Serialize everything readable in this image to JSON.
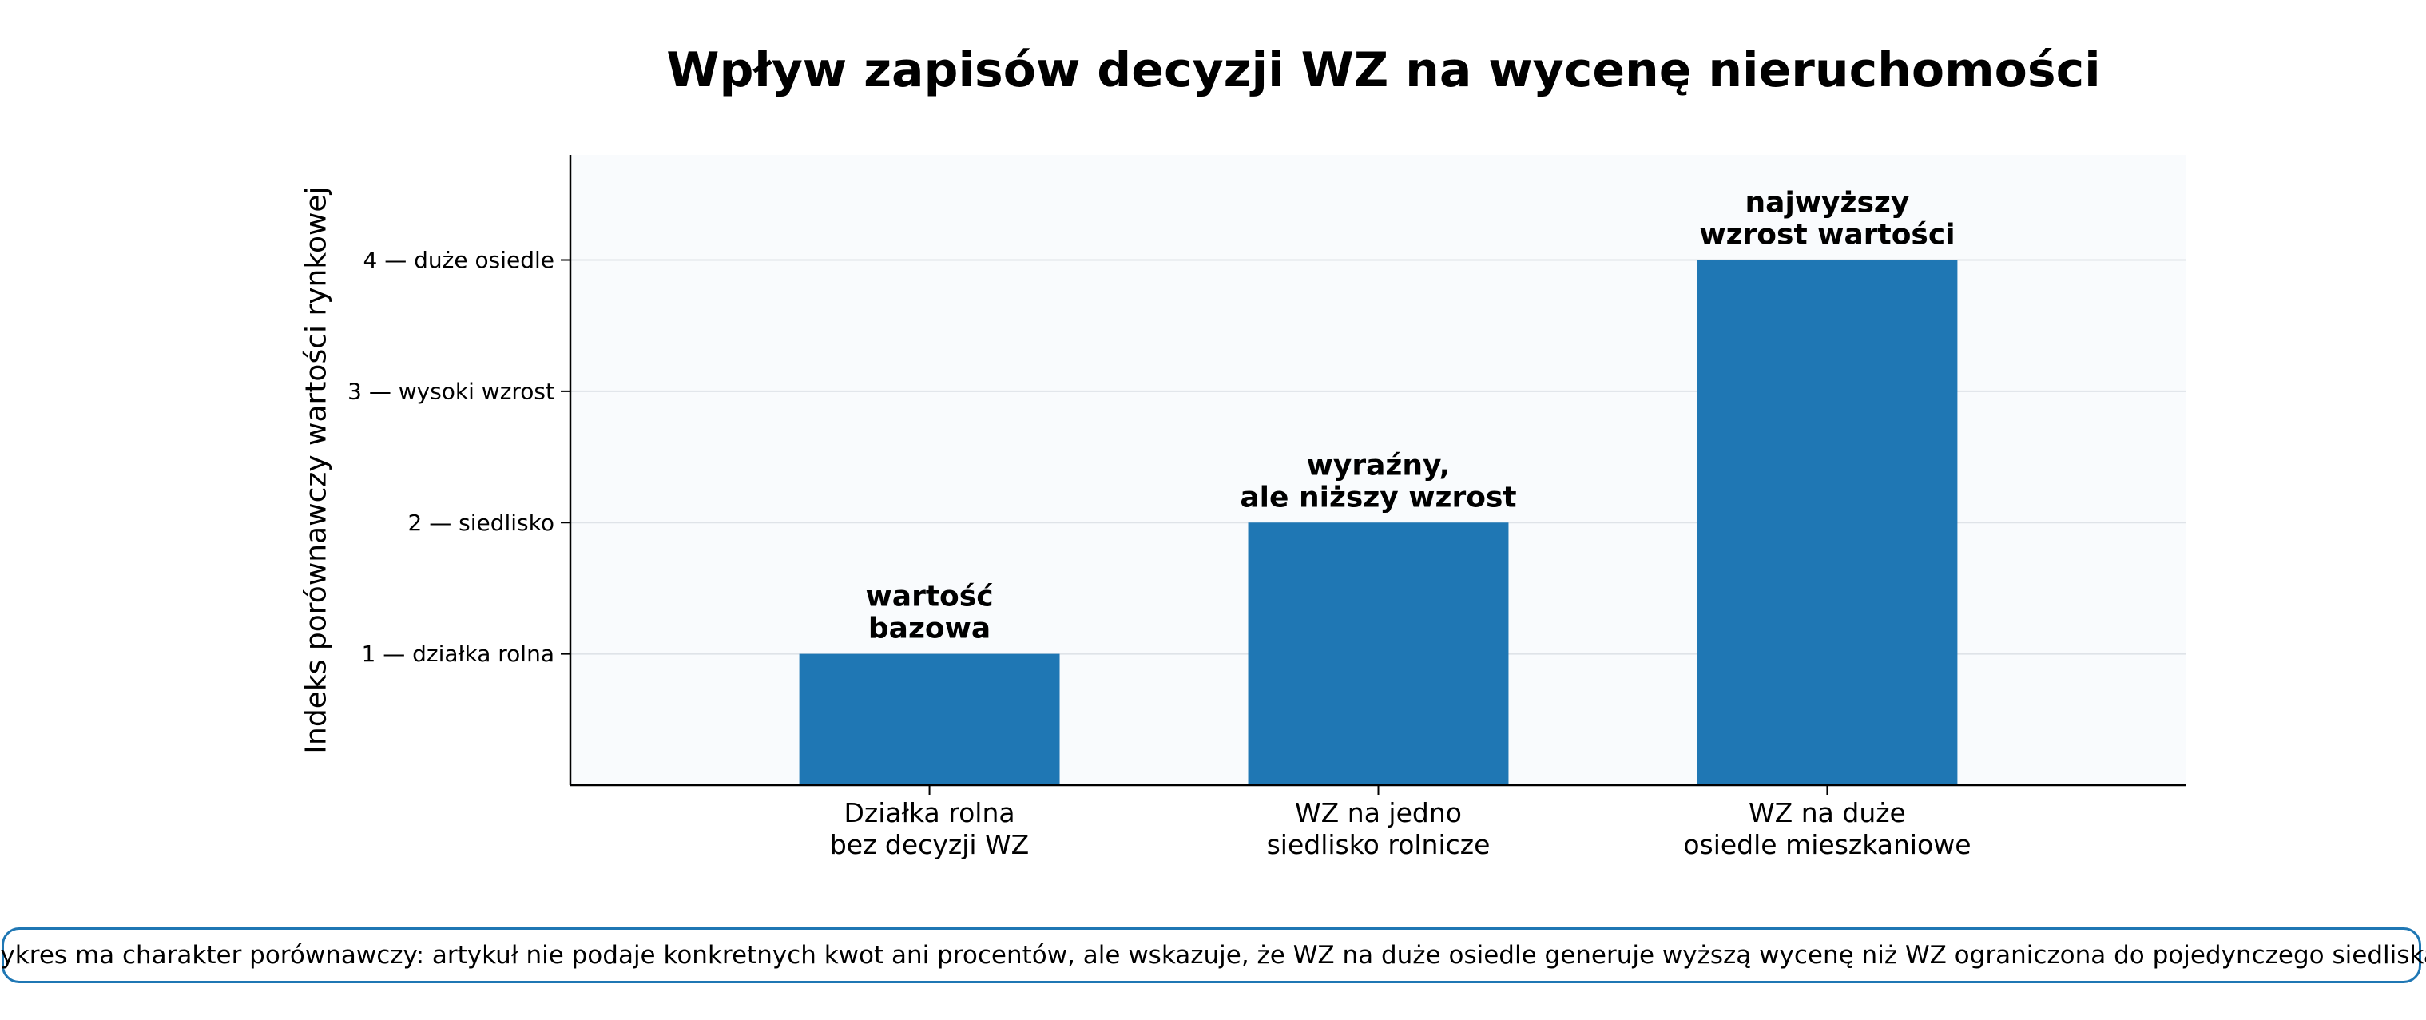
{
  "chart_data": {
    "type": "bar",
    "title": "Wpływ zapisów decyzji WZ na wycenę nieruchomości",
    "xlabel": "",
    "ylabel": "Indeks porównawczy wartości rynkowej",
    "categories": [
      [
        "Działka rolna",
        "bez decyzji WZ"
      ],
      [
        "WZ na jedno",
        "siedlisko rolnicze"
      ],
      [
        "WZ na duże",
        "osiedle mieszkaniowe"
      ]
    ],
    "values": [
      1,
      2,
      4
    ],
    "bar_annotations": [
      [
        "wartość",
        "bazowa"
      ],
      [
        "wyraźny,",
        "ale niższy wzrost"
      ],
      [
        "najwyższy",
        "wzrost wartości"
      ]
    ],
    "yticks": [
      {
        "value": 1,
        "label": "1 — działka rolna"
      },
      {
        "value": 2,
        "label": "2 — siedlisko"
      },
      {
        "value": 3,
        "label": "3 — wysoki wzrost"
      },
      {
        "value": 4,
        "label": "4 — duże osiedle"
      }
    ],
    "ylim": [
      0,
      4.8
    ],
    "grid": "horizontal",
    "bar_color": "#1f77b4",
    "plot_background": "#f9fbfd",
    "note": "Wykres ma charakter porównawczy: artykuł nie podaje konkretnych kwot ani procentów, ale wskazuje, że WZ na duże osiedle generuje wyższą wycenę niż WZ ograniczona do pojedynczego siedliska."
  }
}
